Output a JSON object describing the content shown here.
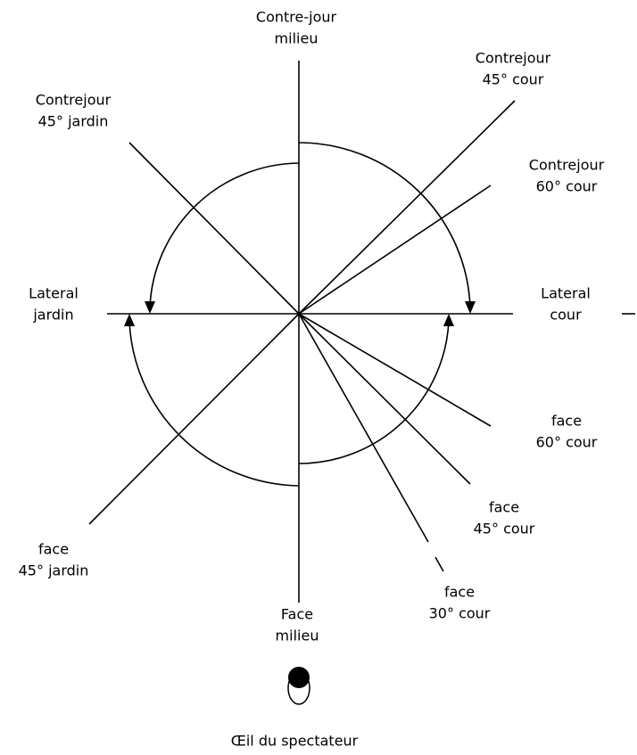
{
  "labels": [
    {
      "lines": [
        "Contre-jour",
        "milieu"
      ]
    },
    {
      "lines": [
        "Contrejour",
        "45° cour"
      ]
    },
    {
      "lines": [
        "Contrejour",
        "45° jardin"
      ]
    },
    {
      "lines": [
        "Contrejour",
        "60° cour"
      ]
    },
    {
      "lines": [
        "Lateral",
        "jardin"
      ]
    },
    {
      "lines": [
        "Lateral",
        "cour"
      ]
    },
    {
      "lines": [
        "face",
        "60° cour"
      ]
    },
    {
      "lines": [
        "face",
        "45° cour"
      ]
    },
    {
      "lines": [
        "face",
        "45° jardin"
      ]
    },
    {
      "lines": [
        "face",
        "30° cour"
      ]
    },
    {
      "lines": [
        "Face",
        "milieu"
      ]
    }
  ],
  "caption": "Œil du spectateur"
}
